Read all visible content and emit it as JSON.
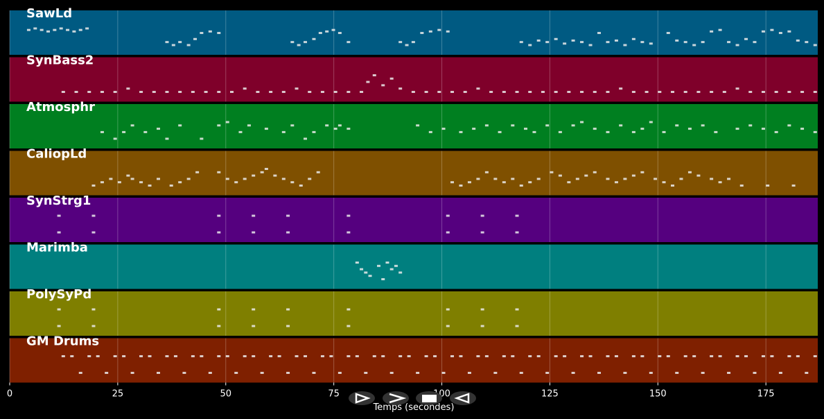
{
  "chart_data": {
    "type": "pianoroll",
    "xlabel": "Temps (secondes)",
    "xlim": [
      0,
      187
    ],
    "xticks": [
      0,
      25,
      50,
      75,
      100,
      125,
      150,
      175
    ],
    "grid": true,
    "series": [
      {
        "name": "SawLd",
        "color": "#005a82",
        "x": [
          4,
          5.5,
          7,
          8.5,
          10,
          11.5,
          13,
          14.5,
          16,
          17.5,
          36,
          37.5,
          39,
          41,
          42.5,
          44,
          46,
          48,
          65,
          66.5,
          68,
          70,
          71.5,
          73,
          74.5,
          76,
          78,
          90,
          91.5,
          93,
          95,
          97,
          99,
          101,
          118,
          120,
          122,
          124,
          126,
          128,
          130,
          132,
          134,
          136,
          138,
          140,
          142,
          144,
          146,
          148,
          152,
          154,
          156,
          158,
          160,
          162,
          164,
          166,
          168,
          170,
          172,
          174,
          176,
          178,
          180,
          182,
          184,
          186
        ],
        "values": [
          74,
          75,
          74,
          73,
          74,
          75,
          74,
          73,
          74,
          75,
          66,
          64,
          66,
          64,
          68,
          72,
          73,
          72,
          66,
          64,
          66,
          68,
          72,
          73,
          74,
          72,
          66,
          66,
          64,
          66,
          72,
          73,
          74,
          73,
          66,
          64,
          67,
          66,
          68,
          65,
          67,
          66,
          64,
          72,
          66,
          67,
          64,
          68,
          66,
          65,
          72,
          67,
          66,
          64,
          66,
          73,
          74,
          66,
          64,
          68,
          66,
          73,
          74,
          72,
          73,
          67,
          66,
          64
        ]
      },
      {
        "name": "SynBass2",
        "color": "#7f002a",
        "x": [
          12,
          15,
          18,
          21,
          24,
          27,
          30,
          33,
          36,
          39,
          42,
          45,
          48,
          51,
          54,
          57,
          60,
          63,
          66,
          69,
          72,
          75,
          78,
          81,
          82.5,
          84,
          86,
          88,
          90,
          93,
          96,
          99,
          102,
          105,
          108,
          111,
          114,
          117,
          120,
          123,
          126,
          129,
          132,
          135,
          138,
          141,
          144,
          147,
          150,
          153,
          156,
          159,
          162,
          165,
          168,
          171,
          174,
          177,
          180,
          183,
          186
        ],
        "values": [
          36,
          36,
          36,
          36,
          36,
          37,
          36,
          36,
          36,
          36,
          36,
          36,
          36,
          36,
          37,
          36,
          36,
          36,
          37,
          36,
          36,
          36,
          36,
          36,
          39,
          41,
          38,
          40,
          37,
          36,
          36,
          36,
          36,
          36,
          37,
          36,
          36,
          36,
          36,
          36,
          36,
          36,
          36,
          36,
          36,
          37,
          36,
          36,
          36,
          36,
          36,
          36,
          36,
          36,
          37,
          36,
          36,
          36,
          36,
          36,
          36
        ]
      },
      {
        "name": "Atmosphr",
        "color": "#007f20",
        "x": [
          21,
          24,
          26,
          28,
          31,
          34,
          36,
          39,
          44,
          48,
          50,
          53,
          55,
          59,
          63,
          65,
          68,
          70,
          73,
          75,
          76,
          78,
          94,
          97,
          100,
          104,
          107,
          110,
          113,
          116,
          119,
          121,
          124,
          127,
          130,
          132,
          135,
          138,
          141,
          144,
          146,
          148,
          151,
          154,
          157,
          160,
          163,
          168,
          171,
          174,
          177,
          180,
          183,
          186
        ],
        "values": [
          62,
          60,
          62,
          64,
          62,
          63,
          60,
          64,
          60,
          64,
          65,
          62,
          64,
          63,
          62,
          64,
          60,
          62,
          64,
          63,
          64,
          63,
          64,
          62,
          63,
          62,
          63,
          64,
          62,
          64,
          63,
          62,
          64,
          62,
          64,
          65,
          63,
          62,
          64,
          62,
          63,
          65,
          62,
          64,
          63,
          64,
          62,
          63,
          64,
          63,
          62,
          64,
          63,
          62
        ]
      },
      {
        "name": "CaliopLd",
        "color": "#7f5000",
        "x": [
          19,
          21,
          23,
          25,
          27,
          28,
          30,
          32,
          34,
          37,
          39,
          41,
          43,
          48,
          50,
          52,
          54,
          56,
          58,
          59,
          61,
          63,
          65,
          67,
          69,
          71,
          102,
          104,
          106,
          108,
          110,
          112,
          114,
          116,
          118,
          120,
          122,
          125,
          127,
          129,
          131,
          133,
          135,
          138,
          140,
          142,
          144,
          146,
          149,
          151,
          153,
          155,
          157,
          159,
          162,
          164,
          166,
          169,
          175,
          181
        ],
        "values": [
          70,
          71,
          72,
          71,
          73,
          72,
          71,
          70,
          72,
          70,
          71,
          72,
          74,
          74,
          72,
          71,
          72,
          73,
          74,
          75,
          73,
          72,
          71,
          70,
          72,
          74,
          71,
          70,
          71,
          72,
          74,
          72,
          71,
          72,
          70,
          71,
          72,
          74,
          73,
          71,
          72,
          73,
          74,
          72,
          71,
          72,
          73,
          74,
          72,
          71,
          70,
          72,
          74,
          73,
          72,
          71,
          72,
          70,
          70,
          70
        ]
      },
      {
        "name": "SynStrg1",
        "color": "#55007f",
        "x": [
          11,
          11,
          19,
          19,
          48,
          48,
          56,
          56,
          64,
          64,
          78,
          78,
          101,
          101,
          109,
          109,
          117,
          117
        ],
        "values": [
          60,
          64,
          60,
          64,
          60,
          64,
          60,
          64,
          60,
          64,
          60,
          64,
          60,
          64,
          60,
          64,
          60,
          64
        ]
      },
      {
        "name": "Marimba",
        "color": "#007f7f",
        "x": [
          80,
          81,
          82,
          83,
          85,
          86,
          87,
          88,
          89,
          90
        ],
        "values": [
          74,
          72,
          71,
          70,
          73,
          69,
          74,
          72,
          73,
          71
        ]
      },
      {
        "name": "PolySyPd",
        "color": "#7f7f00",
        "x": [
          11,
          11,
          19,
          19,
          48,
          48,
          56,
          56,
          64,
          64,
          78,
          78,
          101,
          101,
          109,
          109,
          117,
          117
        ],
        "values": [
          60,
          64,
          60,
          64,
          60,
          64,
          60,
          64,
          60,
          64,
          60,
          64,
          60,
          64,
          60,
          64,
          60,
          64
        ]
      },
      {
        "name": "GM Drums",
        "color": "#7f2000",
        "x": [
          12,
          14,
          16,
          18,
          20,
          22,
          24,
          26,
          28,
          30,
          32,
          34,
          36,
          38,
          40,
          42,
          44,
          46,
          48,
          50,
          52,
          54,
          56,
          58,
          60,
          62,
          64,
          66,
          68,
          70,
          72,
          74,
          76,
          78,
          80,
          82,
          84,
          86,
          88,
          90,
          92,
          94,
          96,
          98,
          100,
          102,
          104,
          106,
          108,
          110,
          112,
          114,
          116,
          118,
          120,
          122,
          124,
          126,
          128,
          130,
          132,
          134,
          136,
          138,
          140,
          142,
          144,
          146,
          148,
          150,
          152,
          154,
          156,
          158,
          160,
          162,
          164,
          166,
          168,
          170,
          172,
          174,
          176,
          178,
          180,
          182,
          184,
          186
        ],
        "values": [
          42,
          42,
          38,
          42,
          42,
          38,
          42,
          42,
          38,
          42,
          42,
          38,
          42,
          42,
          38,
          42,
          42,
          38,
          42,
          42,
          38,
          42,
          42,
          38,
          42,
          42,
          38,
          42,
          42,
          38,
          42,
          42,
          38,
          42,
          42,
          38,
          42,
          42,
          38,
          42,
          42,
          38,
          42,
          42,
          38,
          42,
          42,
          38,
          42,
          42,
          38,
          42,
          42,
          38,
          42,
          42,
          38,
          42,
          42,
          38,
          42,
          42,
          38,
          42,
          42,
          38,
          42,
          42,
          38,
          42,
          42,
          38,
          42,
          42,
          38,
          42,
          42,
          38,
          42,
          42,
          38,
          42,
          42,
          38,
          42,
          42,
          38,
          42
        ]
      }
    ]
  }
}
